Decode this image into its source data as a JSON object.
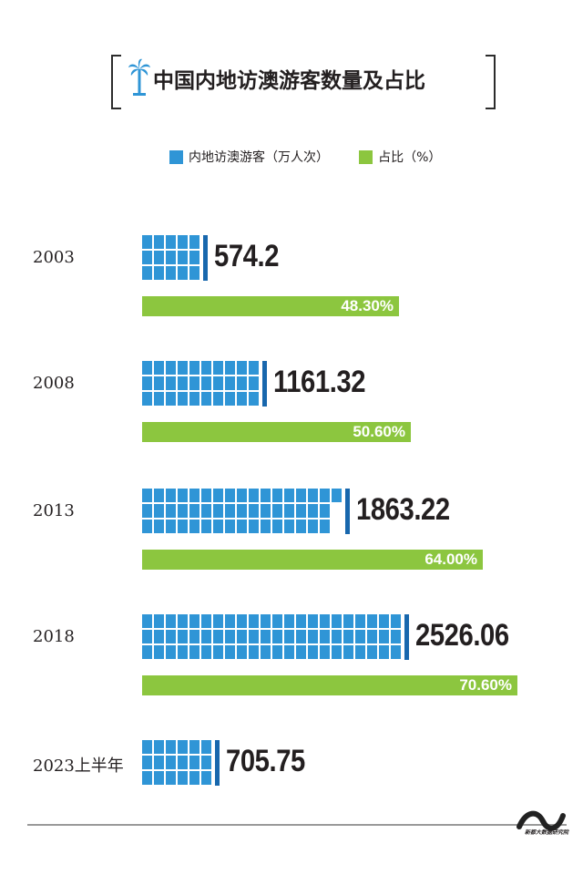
{
  "title": "中国内地访澳游客数量及占比",
  "legend": {
    "visitors": "内地访澳游客（万人次）",
    "share": "占比（%）"
  },
  "colors": {
    "visitors": "#2f95d6",
    "visitors_edge": "#1867ad",
    "share": "#8cc63f",
    "text": "#231f20"
  },
  "chart_data": {
    "type": "bar",
    "categories": [
      "2003",
      "2008",
      "2013",
      "2018",
      "2023上半年"
    ],
    "series": [
      {
        "name": "内地访澳游客（万人次）",
        "values": [
          574.2,
          1161.32,
          1863.22,
          2526.06,
          705.75
        ],
        "labels": [
          "574.2",
          "1161.32",
          "1863.22",
          "2526.06",
          "705.75"
        ]
      },
      {
        "name": "占比（%）",
        "values": [
          48.3,
          50.6,
          64.0,
          70.6,
          null
        ],
        "labels": [
          "48.30%",
          "50.60%",
          "64.00%",
          "70.60%",
          null
        ]
      }
    ],
    "title": "中国内地访澳游客数量及占比"
  },
  "footer": {
    "brand": "新都大数据研究院",
    "logo_icon": "wave-logo-icon"
  }
}
